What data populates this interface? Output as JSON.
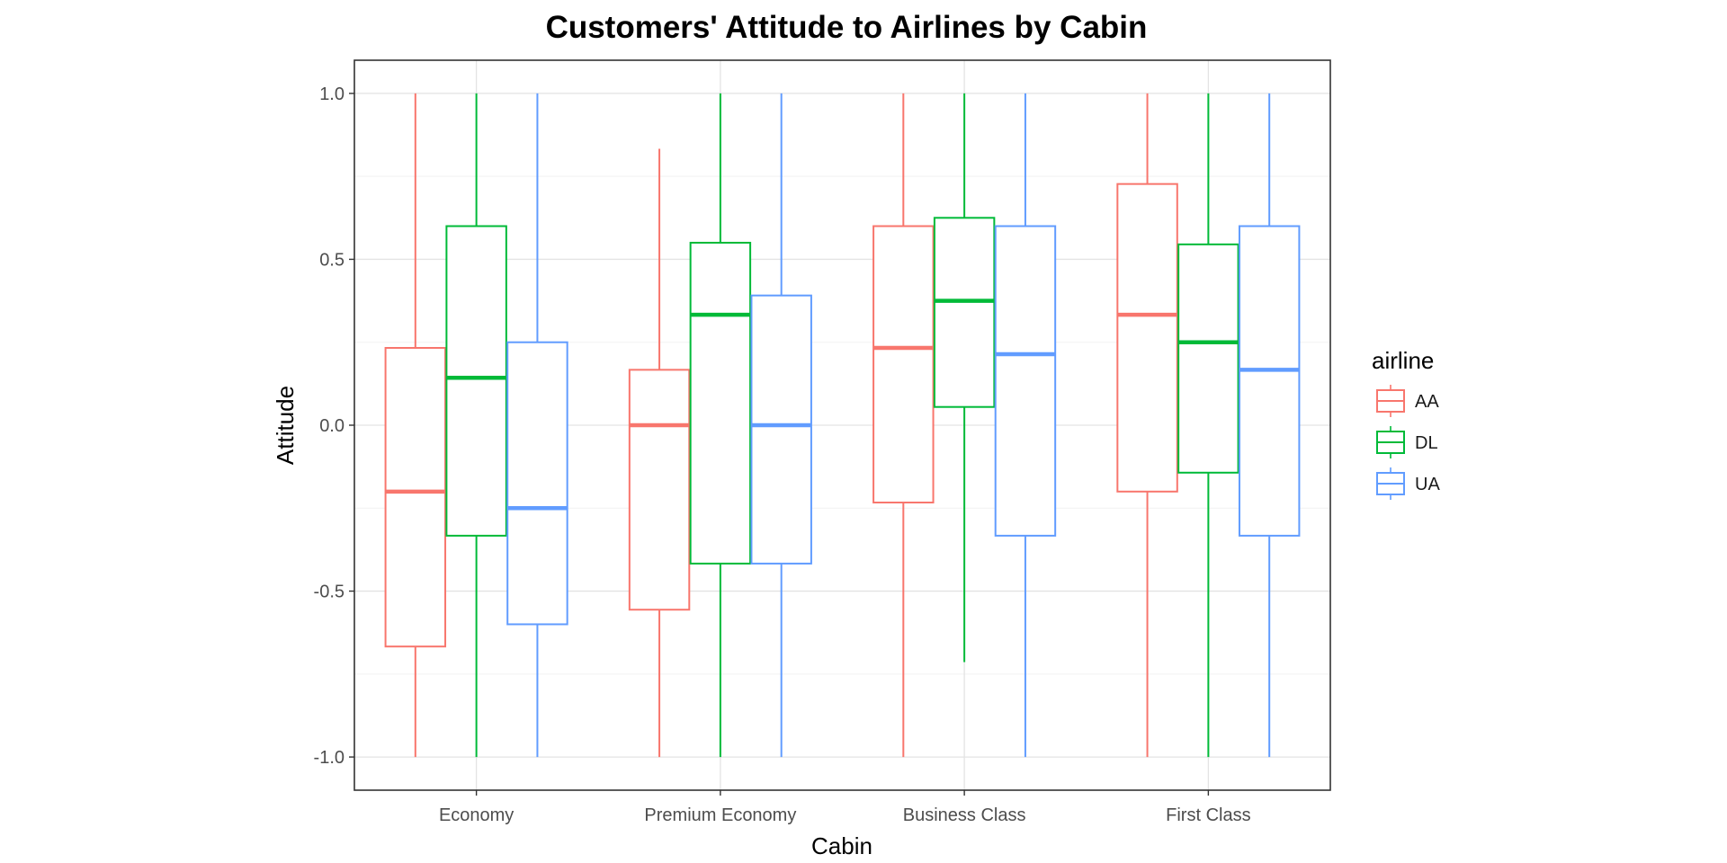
{
  "chart_data": {
    "type": "boxplot",
    "title": "Customers' Attitude to Airlines by Cabin",
    "xlabel": "Cabin",
    "ylabel": "Attitude",
    "categories": [
      "Economy",
      "Premium Economy",
      "Business Class",
      "First Class"
    ],
    "ylim": [
      -1.1,
      1.1
    ],
    "yticks": [
      -1.0,
      -0.5,
      0.0,
      0.5,
      1.0
    ],
    "ytick_labels": [
      "-1.0",
      "-0.5",
      "0.0",
      "0.5",
      "1.0"
    ],
    "grid": true,
    "legend": {
      "title": "airline",
      "position": "right"
    },
    "series": [
      {
        "name": "AA",
        "color": "#F8766D",
        "boxes": [
          {
            "min": -1.0,
            "q1": -0.667,
            "median": -0.2,
            "q3": 0.233,
            "max": 1.0
          },
          {
            "min": -1.0,
            "q1": -0.556,
            "median": 0.0,
            "q3": 0.167,
            "max": 0.833
          },
          {
            "min": -1.0,
            "q1": -0.233,
            "median": 0.233,
            "q3": 0.6,
            "max": 1.0
          },
          {
            "min": -1.0,
            "q1": -0.2,
            "median": 0.333,
            "q3": 0.727,
            "max": 1.0
          }
        ]
      },
      {
        "name": "DL",
        "color": "#00BA38",
        "boxes": [
          {
            "min": -1.0,
            "q1": -0.333,
            "median": 0.143,
            "q3": 0.6,
            "max": 1.0
          },
          {
            "min": -1.0,
            "q1": -0.417,
            "median": 0.333,
            "q3": 0.55,
            "max": 1.0
          },
          {
            "min": -0.714,
            "q1": 0.055,
            "median": 0.375,
            "q3": 0.625,
            "max": 1.0
          },
          {
            "min": -1.0,
            "q1": -0.143,
            "median": 0.25,
            "q3": 0.545,
            "max": 1.0
          }
        ]
      },
      {
        "name": "UA",
        "color": "#619CFF",
        "boxes": [
          {
            "min": -1.0,
            "q1": -0.6,
            "median": -0.25,
            "q3": 0.25,
            "max": 1.0
          },
          {
            "min": -1.0,
            "q1": -0.417,
            "median": 0.0,
            "q3": 0.391,
            "max": 1.0
          },
          {
            "min": -1.0,
            "q1": -0.333,
            "median": 0.214,
            "q3": 0.6,
            "max": 1.0
          },
          {
            "min": -1.0,
            "q1": -0.333,
            "median": 0.167,
            "q3": 0.6,
            "max": 1.0
          }
        ]
      }
    ]
  }
}
